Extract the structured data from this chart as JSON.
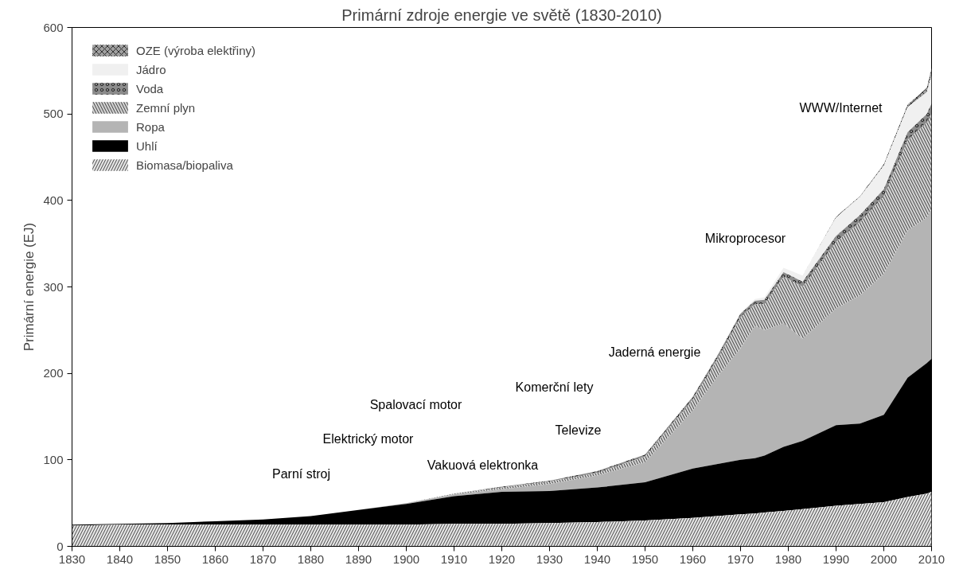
{
  "chart_data": {
    "type": "area",
    "stacked": true,
    "title": "Primární zdroje energie ve světě (1830-2010)",
    "ylabel": "Primární energie (EJ)",
    "x": [
      1830,
      1840,
      1850,
      1860,
      1870,
      1880,
      1890,
      1900,
      1910,
      1920,
      1930,
      1940,
      1950,
      1960,
      1965,
      1970,
      1973,
      1975,
      1979,
      1983,
      1990,
      1995,
      2000,
      2005,
      2009,
      2010
    ],
    "series": [
      {
        "name": "Biomasa/biopaliva",
        "color": "#e6e6e6",
        "values": [
          24,
          25,
          25,
          25,
          25,
          25,
          25,
          25,
          26,
          26,
          27,
          28,
          30,
          33,
          35,
          37,
          38,
          39,
          41,
          43,
          47,
          49,
          51,
          57,
          61,
          63
        ]
      },
      {
        "name": "Uhlí",
        "color": "#000000",
        "values": [
          1,
          1,
          2,
          4,
          6,
          10,
          17,
          24,
          32,
          37,
          37,
          40,
          44,
          57,
          60,
          63,
          64,
          66,
          74,
          79,
          93,
          93,
          101,
          138,
          151,
          154
        ]
      },
      {
        "name": "Ropa",
        "color": "#b4b4b4",
        "values": [
          null,
          null,
          null,
          null,
          null,
          null,
          0,
          1,
          2,
          3,
          8,
          14,
          23,
          67,
          100,
          129,
          153,
          145,
          143,
          118,
          135,
          148,
          163,
          170,
          168,
          173
        ]
      },
      {
        "name": "Zemní plyn",
        "color": "#d2d2d2",
        "values": [
          null,
          null,
          null,
          null,
          null,
          null,
          null,
          0,
          1,
          2,
          3,
          3,
          7,
          13,
          20,
          36,
          25,
          30,
          54,
          60,
          77,
          85,
          90,
          105,
          110,
          110
        ]
      },
      {
        "name": "Voda",
        "color": "#8c8c8c",
        "values": [
          null,
          null,
          null,
          null,
          null,
          null,
          null,
          null,
          0,
          1,
          1,
          2,
          2,
          3,
          4,
          4,
          4,
          5,
          5,
          6,
          7,
          8,
          8,
          9,
          10,
          12
        ]
      },
      {
        "name": "Jádro",
        "color": "#f0f0f0",
        "values": [
          null,
          null,
          null,
          null,
          null,
          null,
          null,
          null,
          null,
          null,
          null,
          null,
          null,
          null,
          0,
          1,
          2,
          3,
          5,
          7,
          21,
          21,
          27,
          29,
          25,
          33
        ]
      },
      {
        "name": "OZE (výroba elektřiny)",
        "color": "#a0a0a0",
        "values": [
          null,
          null,
          null,
          null,
          null,
          null,
          null,
          null,
          null,
          null,
          null,
          null,
          null,
          null,
          null,
          null,
          null,
          null,
          null,
          0,
          1,
          1,
          2,
          3,
          5,
          8
        ]
      }
    ],
    "xlim": [
      1830,
      2010
    ],
    "xticks": [
      1830,
      1840,
      1850,
      1860,
      1870,
      1880,
      1890,
      1900,
      1910,
      1920,
      1930,
      1940,
      1950,
      1960,
      1970,
      1980,
      1990,
      2000,
      2010
    ],
    "ylim": [
      0,
      600
    ],
    "yticks": [
      0,
      100,
      200,
      300,
      400,
      500,
      600
    ],
    "grid": false,
    "legend": "top left",
    "annotations": [
      "Parní stroj",
      "Elektrický motor",
      "Spalovací motor",
      "Vakuová elektronka",
      "Komerční lety",
      "Televize",
      "Jaderná energie",
      "Mikroprocesor",
      "WWW/Internet"
    ]
  }
}
